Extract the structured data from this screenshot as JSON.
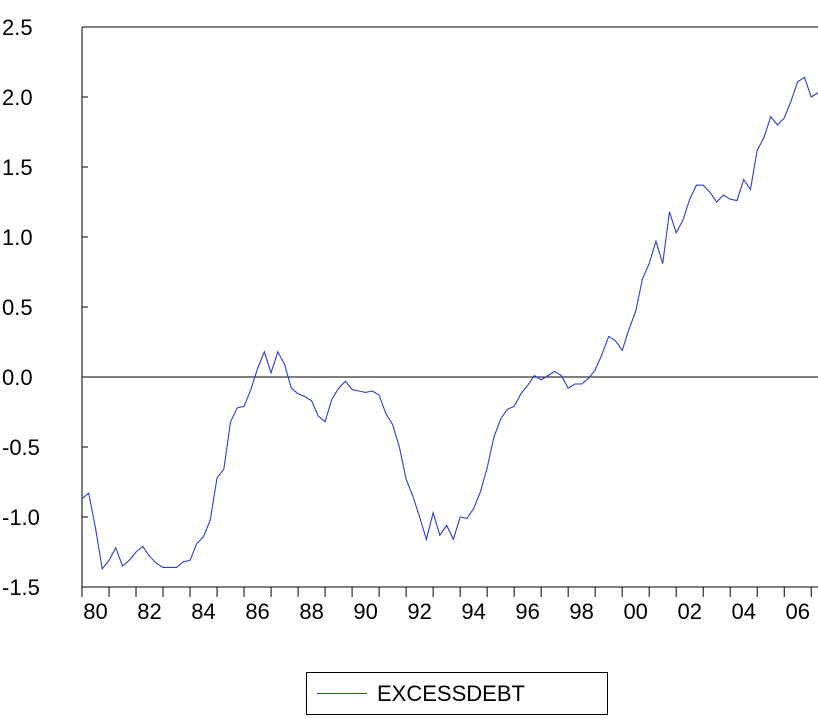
{
  "chart_data": {
    "type": "line",
    "title": "",
    "xlabel": "",
    "ylabel": "",
    "ylim": [
      -1.5,
      2.5
    ],
    "xlim": [
      1980.0,
      2007.25
    ],
    "y_ticks": [
      -1.5,
      -1.0,
      -0.5,
      0.0,
      0.5,
      1.0,
      1.5,
      2.0,
      2.5
    ],
    "y_tick_labels": [
      "-1.5",
      "-1.0",
      "-0.5",
      "0.0",
      "0.5",
      "1.0",
      "1.5",
      "2.0",
      "2.5"
    ],
    "x_ticks": [
      1980,
      1982,
      1984,
      1986,
      1988,
      1990,
      1992,
      1994,
      1996,
      1998,
      2000,
      2002,
      2004,
      2006
    ],
    "x_tick_labels": [
      "80",
      "82",
      "84",
      "86",
      "88",
      "90",
      "92",
      "94",
      "96",
      "98",
      "00",
      "02",
      "04",
      "06"
    ],
    "reference_line": 0.0,
    "grid": false,
    "legend_position": "bottom-center",
    "series": [
      {
        "name": "EXCESSDEBT",
        "color": "#2b3fcc",
        "x_start": "1980Q1",
        "frequency": "quarterly",
        "values": [
          -0.87,
          -0.83,
          -1.08,
          -1.37,
          -1.31,
          -1.22,
          -1.35,
          -1.31,
          -1.25,
          -1.21,
          -1.28,
          -1.33,
          -1.36,
          -1.36,
          -1.36,
          -1.32,
          -1.31,
          -1.19,
          -1.14,
          -1.02,
          -0.72,
          -0.66,
          -0.32,
          -0.22,
          -0.21,
          -0.09,
          0.06,
          0.18,
          0.03,
          0.18,
          0.09,
          -0.08,
          -0.12,
          -0.14,
          -0.17,
          -0.28,
          -0.32,
          -0.16,
          -0.08,
          -0.03,
          -0.09,
          -0.1,
          -0.11,
          -0.1,
          -0.13,
          -0.26,
          -0.34,
          -0.5,
          -0.73,
          -0.85,
          -1.0,
          -1.16,
          -0.97,
          -1.13,
          -1.06,
          -1.16,
          -1.0,
          -1.01,
          -0.94,
          -0.82,
          -0.65,
          -0.43,
          -0.3,
          -0.23,
          -0.21,
          -0.12,
          -0.06,
          0.01,
          -0.02,
          0.01,
          0.04,
          0.01,
          -0.08,
          -0.05,
          -0.05,
          -0.01,
          0.05,
          0.16,
          0.29,
          0.26,
          0.19,
          0.34,
          0.47,
          0.7,
          0.81,
          0.97,
          0.81,
          1.18,
          1.03,
          1.12,
          1.27,
          1.37,
          1.37,
          1.32,
          1.25,
          1.3,
          1.27,
          1.26,
          1.41,
          1.34,
          1.62,
          1.71,
          1.86,
          1.8,
          1.85,
          1.97,
          2.11,
          2.14,
          2.0,
          2.03,
          2.01
        ]
      }
    ]
  }
}
